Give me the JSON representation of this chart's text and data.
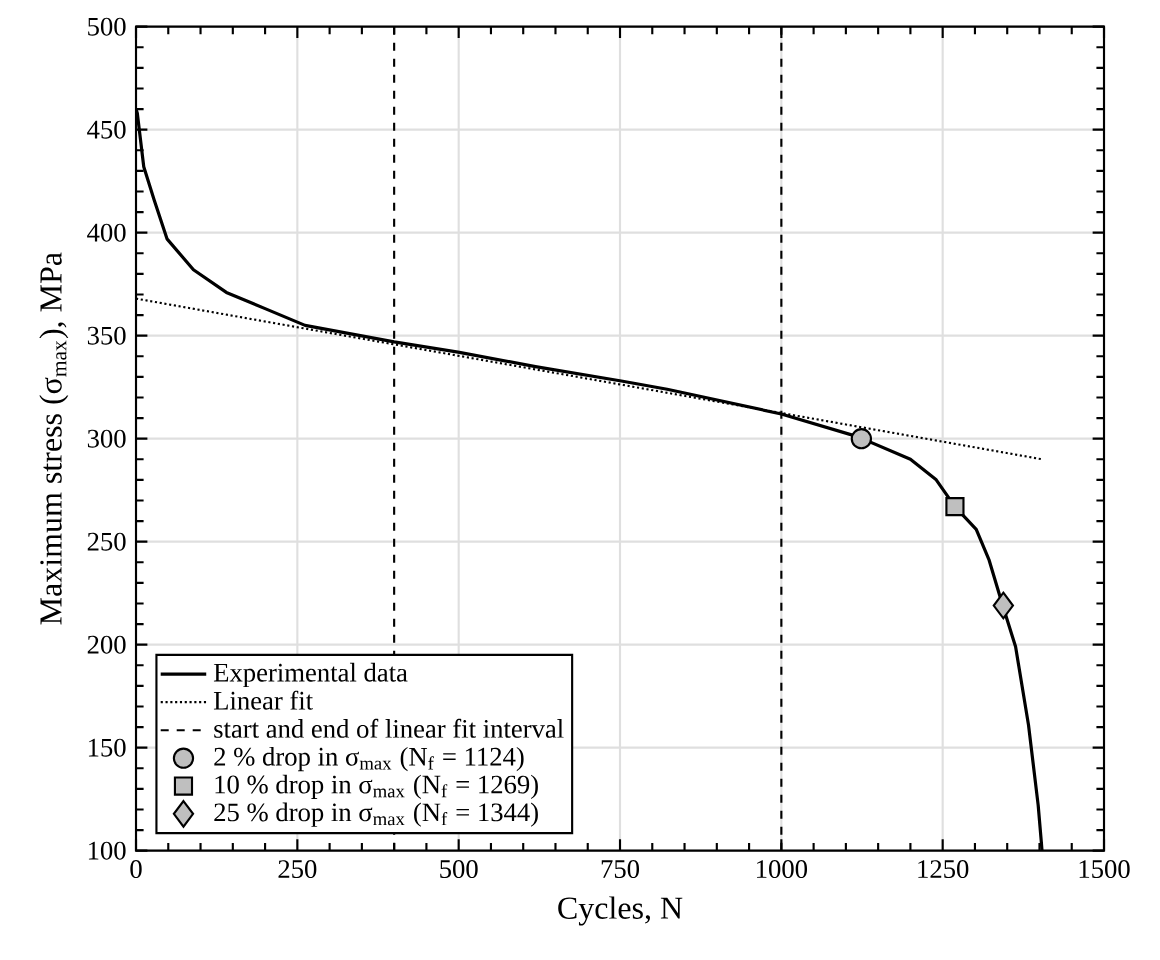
{
  "chart_data": {
    "type": "line",
    "xlabel": "Cycles, N",
    "ylabel": "Maximum stress (σ$_{max}$), MPa",
    "xlim": [
      0,
      1500
    ],
    "ylim": [
      100,
      500
    ],
    "xticks": [
      0,
      250,
      500,
      750,
      1000,
      1250,
      1500
    ],
    "yticks": [
      100,
      150,
      200,
      250,
      300,
      350,
      400,
      450,
      500
    ],
    "grid": true,
    "legend": "bottom left",
    "series": [
      {
        "name": "Experimental data",
        "line_style": "solid",
        "color": "#000000",
        "x": [
          0,
          2,
          12,
          28,
          48,
          89,
          140,
          201,
          262,
          400,
          499,
          619,
          752,
          823,
          1000,
          1118,
          1200,
          1240,
          1269,
          1302,
          1322,
          1343,
          1363,
          1383,
          1398,
          1404
        ],
        "values": [
          460,
          458,
          432,
          416,
          397,
          382,
          371,
          363,
          355,
          347,
          342,
          335,
          328,
          324,
          312,
          301,
          290,
          280,
          267,
          256,
          241,
          219,
          199,
          161,
          122,
          100
        ]
      },
      {
        "name": "Linear fit",
        "line_style": "dotted",
        "color": "#000000",
        "x": [
          0,
          1404
        ],
        "values": [
          368,
          290
        ]
      },
      {
        "name": "2 % drop in σ$_{max}$ (N$_{f}$ = 1124)",
        "type": "scatter",
        "marker": "circle",
        "color": "#bfbfbf",
        "x": [
          1124
        ],
        "values": [
          300
        ]
      },
      {
        "name": "10 % drop in σ$_{max}$ (N$_{f}$ = 1269)",
        "type": "scatter",
        "marker": "square",
        "color": "#bfbfbf",
        "x": [
          1269
        ],
        "values": [
          267
        ]
      },
      {
        "name": "25 % drop in σ$_{max}$ (N$_{f}$ = 1344)",
        "type": "scatter",
        "marker": "diamond",
        "color": "#bfbfbf",
        "x": [
          1344
        ],
        "values": [
          219
        ]
      }
    ],
    "ref_lines": [
      {
        "axis": "x",
        "value": 400,
        "label": "start and end of linear fit interval",
        "line_style": "dashed",
        "color": "#000000"
      },
      {
        "axis": "x",
        "value": 1000,
        "line_style": "dashed",
        "color": "#000000"
      }
    ]
  }
}
